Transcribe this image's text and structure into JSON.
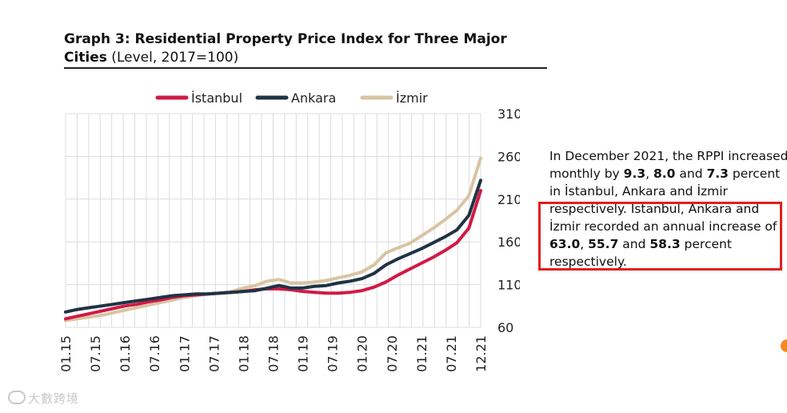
{
  "title_bold": "Graph 3: Residential Property Price Index for Three Major Cities",
  "title_sub": " (Level, 2017=100)",
  "side_text": {
    "p1": "In December 2021, the RPPI increased monthly by ",
    "v1": "9.3",
    "sep1": ", ",
    "v2": "8.0",
    "p2": " and ",
    "v3": "7.3",
    "p3": " percent in İstanbul, Ankara and İzmir respectively. İstanbul, Ankara and İzmir recorded an annual increase of ",
    "v4": "63.0",
    "sep2": ", ",
    "v5": "55.7",
    "p4": " and ",
    "v6": "58.3",
    "p5": " percent respectively."
  },
  "highlight_color": "#e02020",
  "watermark": "大數跨境",
  "chart_data": {
    "type": "line",
    "title": "Graph 3: Residential Property Price Index for Three Major Cities (Level, 2017=100)",
    "ylim": [
      60,
      310
    ],
    "yticks": [
      60,
      110,
      160,
      210,
      260,
      310
    ],
    "y_axis_position": "right",
    "grid": true,
    "legend_position": "top",
    "x_tick_labels": [
      "01.15",
      "07.15",
      "01.16",
      "07.16",
      "01.17",
      "07.17",
      "01.18",
      "07.18",
      "01.19",
      "07.19",
      "01.20",
      "07.20",
      "01.21",
      "07.21",
      "12.21"
    ],
    "series": [
      {
        "name": "İstanbul",
        "color": "#d11a45",
        "values": [
          70,
          73,
          76,
          79,
          82,
          85,
          87,
          90,
          92,
          95,
          97,
          98,
          99,
          100,
          101,
          102,
          104,
          105,
          105,
          104,
          102,
          101,
          100,
          100,
          101,
          103,
          107,
          113,
          121,
          128,
          135,
          142,
          150,
          159,
          176,
          220
        ]
      },
      {
        "name": "Ankara",
        "color": "#1f3345",
        "values": [
          78,
          81,
          83,
          85,
          87,
          89,
          91,
          93,
          95,
          97,
          98,
          99,
          99,
          100,
          101,
          102,
          103,
          106,
          109,
          106,
          106,
          108,
          109,
          112,
          114,
          117,
          123,
          133,
          140,
          146,
          152,
          159,
          166,
          174,
          191,
          232
        ]
      },
      {
        "name": "İzmir",
        "color": "#d9c4a3",
        "values": [
          68,
          70,
          72,
          74,
          77,
          80,
          83,
          86,
          89,
          92,
          95,
          97,
          99,
          100,
          102,
          106,
          109,
          114,
          116,
          112,
          112,
          113,
          115,
          118,
          121,
          125,
          133,
          147,
          153,
          158,
          167,
          176,
          186,
          197,
          214,
          258
        ]
      }
    ]
  }
}
